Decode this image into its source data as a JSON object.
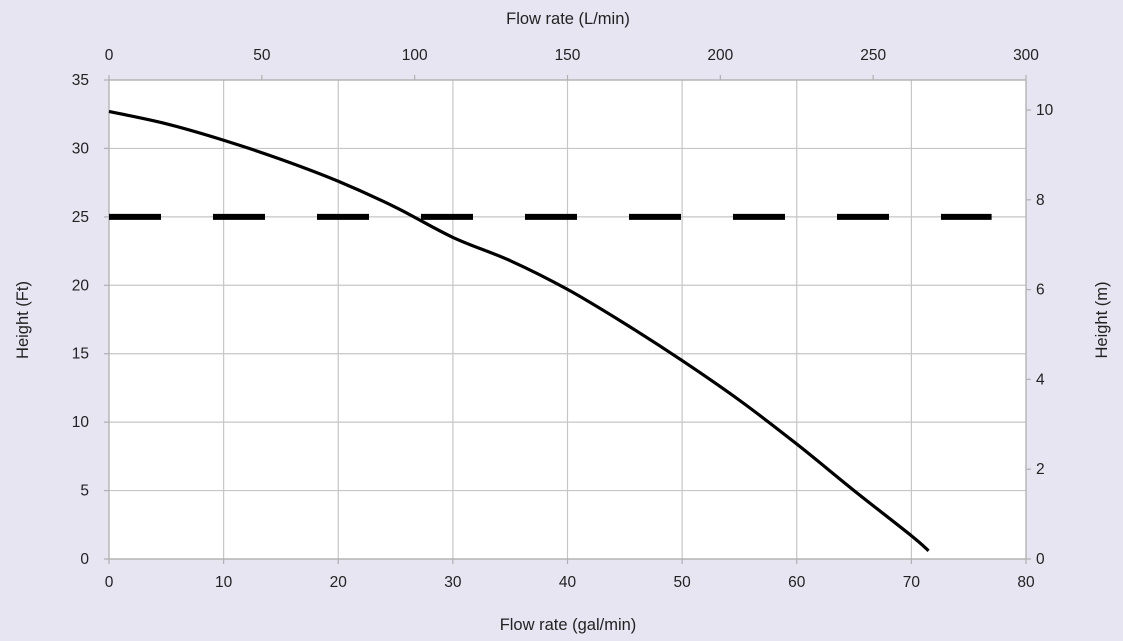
{
  "chart_data": {
    "type": "line",
    "xlabel": "Flow rate (gal/min)",
    "ylabel": "Height (Ft)",
    "x2label": "Flow rate (L/min)",
    "y2label": "Height (m)",
    "xlim": [
      0,
      80
    ],
    "ylim": [
      0,
      35
    ],
    "x2lim": [
      0,
      300
    ],
    "y2lim": [
      0,
      10.668
    ],
    "xticks": [
      "0",
      "10",
      "20",
      "30",
      "40",
      "50",
      "60",
      "70",
      "80"
    ],
    "yticks": [
      "0",
      "5",
      "10",
      "15",
      "20",
      "25",
      "30",
      "35"
    ],
    "x2ticks": [
      "0",
      "50",
      "100",
      "150",
      "200",
      "250",
      "300"
    ],
    "y2ticks": [
      "0",
      "2",
      "4",
      "6",
      "8",
      "10"
    ],
    "grid": true,
    "series": [
      {
        "style": "solid",
        "color": "#000000",
        "x": [
          0,
          5,
          10,
          15,
          20,
          25,
          30,
          35,
          40,
          45,
          50,
          55,
          60,
          65,
          70,
          71.5
        ],
        "y": [
          32.7,
          31.8,
          30.6,
          29.2,
          27.6,
          25.7,
          23.5,
          21.8,
          19.7,
          17.2,
          14.5,
          11.6,
          8.4,
          5.0,
          1.7,
          0.6
        ]
      },
      {
        "style": "dashed",
        "color": "#000000",
        "x": [
          0,
          77
        ],
        "y": [
          25,
          25
        ]
      }
    ]
  }
}
